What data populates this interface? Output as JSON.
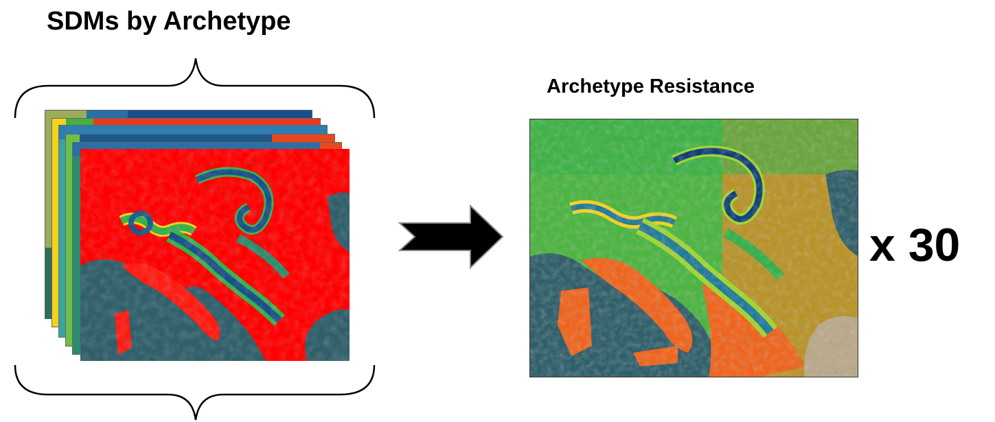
{
  "left_title": "SDMs by Archetype",
  "right_title": "Archetype Resistance",
  "multiplier": "x 30",
  "layer_colors": [
    "#1a5a8a",
    "#2e7db3",
    "#4a9bd0",
    "#2a8c6c",
    "#e43c22",
    "#ff0000"
  ],
  "resistance_palette": [
    "#0d3d7a",
    "#1f7a9a",
    "#35b04a",
    "#9fd72c",
    "#f6d21e",
    "#f47a1e",
    "#e8481d"
  ],
  "sea_color": "#2f5f6a",
  "arrow_color": "#000000"
}
